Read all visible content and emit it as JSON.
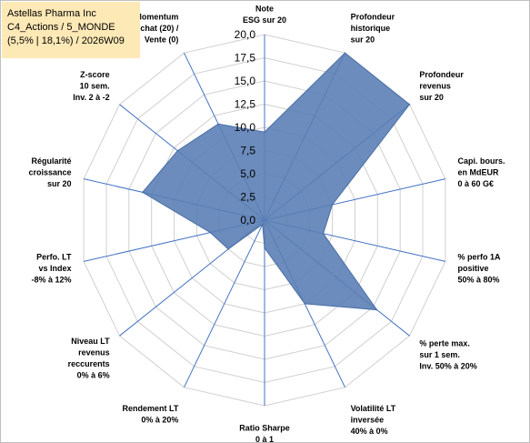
{
  "title": {
    "line1": "Astellas Pharma Inc",
    "line2": "C4_Actions / 5_MONDE",
    "line3": "(5,5% | 18,1%) / 2026W09"
  },
  "chart_data": {
    "type": "radar",
    "rmin": 0,
    "rmax": 20,
    "ticks": [
      "0,0",
      "2,5",
      "5,0",
      "7,5",
      "10,0",
      "12,5",
      "15,0",
      "17,5",
      "20,0"
    ],
    "tick_values": [
      0,
      2.5,
      5,
      7.5,
      10,
      12.5,
      15,
      17.5,
      20
    ],
    "grid": true,
    "series_color": "#5b80b5",
    "categories": [
      [
        "Note",
        "ESG sur 20"
      ],
      [
        "Profondeur",
        "historique",
        "sur 20"
      ],
      [
        "Profondeur",
        "revenus",
        "sur 20"
      ],
      [
        "Capi. bours.",
        "en MdEUR",
        "0 à 60 G€"
      ],
      [
        "% perfo 1A",
        "positive",
        "50% à 80%"
      ],
      [
        "% perte max.",
        "sur 1 sem.",
        "Inv. 50% à 20%"
      ],
      [
        "Volatilité LT",
        "inversée",
        "40% à 0%"
      ],
      [
        "Ratio Sharpe",
        "0 à 1"
      ],
      [
        "Rendement LT",
        "0% à 20%"
      ],
      [
        "Niveau LT",
        "revenus",
        "reccurents",
        "0% à 6%"
      ],
      [
        "Perfo. LT",
        "vs Index",
        "-8% à 12%"
      ],
      [
        "Régularité",
        "croissance",
        "sur 20"
      ],
      [
        "Z-score",
        "10 sem.",
        "Inv. 2 à -2"
      ],
      [
        "Momentum",
        "Achat (20) /",
        "Vente (0)"
      ]
    ],
    "values": [
      9.5,
      20.0,
      20.0,
      7.5,
      6.5,
      15.5,
      10.0,
      3.0,
      0.5,
      5.0,
      6.0,
      13.5,
      12.0,
      11.5
    ]
  }
}
